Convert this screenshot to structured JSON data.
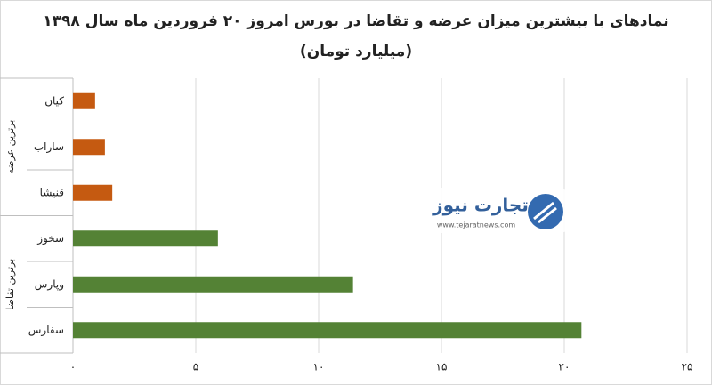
{
  "chart_data": {
    "type": "bar",
    "title": "نمادهای با بیشترین میزان عرضه و تقاضا در بورس امروز ۲۰ فروردین ماه سال ۱۳۹۸",
    "subtitle": "(میلیارد تومان)",
    "groups": [
      {
        "name": "برترین عرضه",
        "color": "#c55a11",
        "categories": [
          "کیان",
          "ساراب",
          "قنیشا"
        ],
        "values": [
          0.9,
          1.3,
          1.6
        ]
      },
      {
        "name": "برترین تقاضا",
        "color": "#548235",
        "categories": [
          "سخوز",
          "وپارس",
          "سفارس"
        ],
        "values": [
          5.9,
          11.4,
          20.7
        ]
      }
    ],
    "xlim": [
      0,
      25
    ],
    "xticks": [
      {
        "value": 0,
        "label": "۰"
      },
      {
        "value": 5,
        "label": "۵"
      },
      {
        "value": 10,
        "label": "۱۰"
      },
      {
        "value": 15,
        "label": "۱۵"
      },
      {
        "value": 20,
        "label": "۲۰"
      },
      {
        "value": 25,
        "label": "۲۵"
      }
    ],
    "grid": true,
    "watermark": {
      "brand": "تجارت نیوز",
      "url": "www.tejaratnews.com"
    }
  }
}
